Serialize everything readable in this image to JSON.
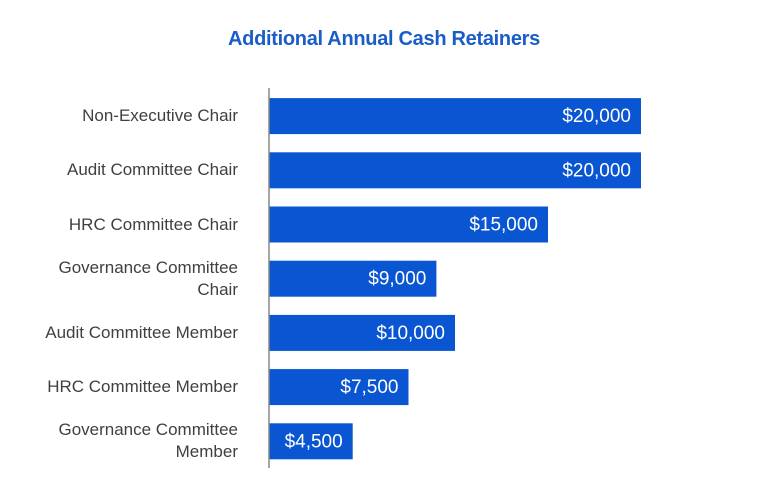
{
  "chart_data": {
    "type": "bar",
    "orientation": "horizontal",
    "title": "Additional Annual Cash Retainers",
    "categories": [
      "Non-Executive Chair",
      "Audit Committee Chair",
      "HRC Committee Chair",
      "Governance Committee\nChair",
      "Audit Committee Member",
      "HRC Committee Member",
      "Governance Committee\nMember"
    ],
    "values": [
      20000,
      20000,
      15000,
      9000,
      10000,
      7500,
      4500
    ],
    "value_labels": [
      "$20,000",
      "$20,000",
      "$15,000",
      "$9,000",
      "$10,000",
      "$7,500",
      "$4,500"
    ],
    "color": "#0a55d2"
  }
}
